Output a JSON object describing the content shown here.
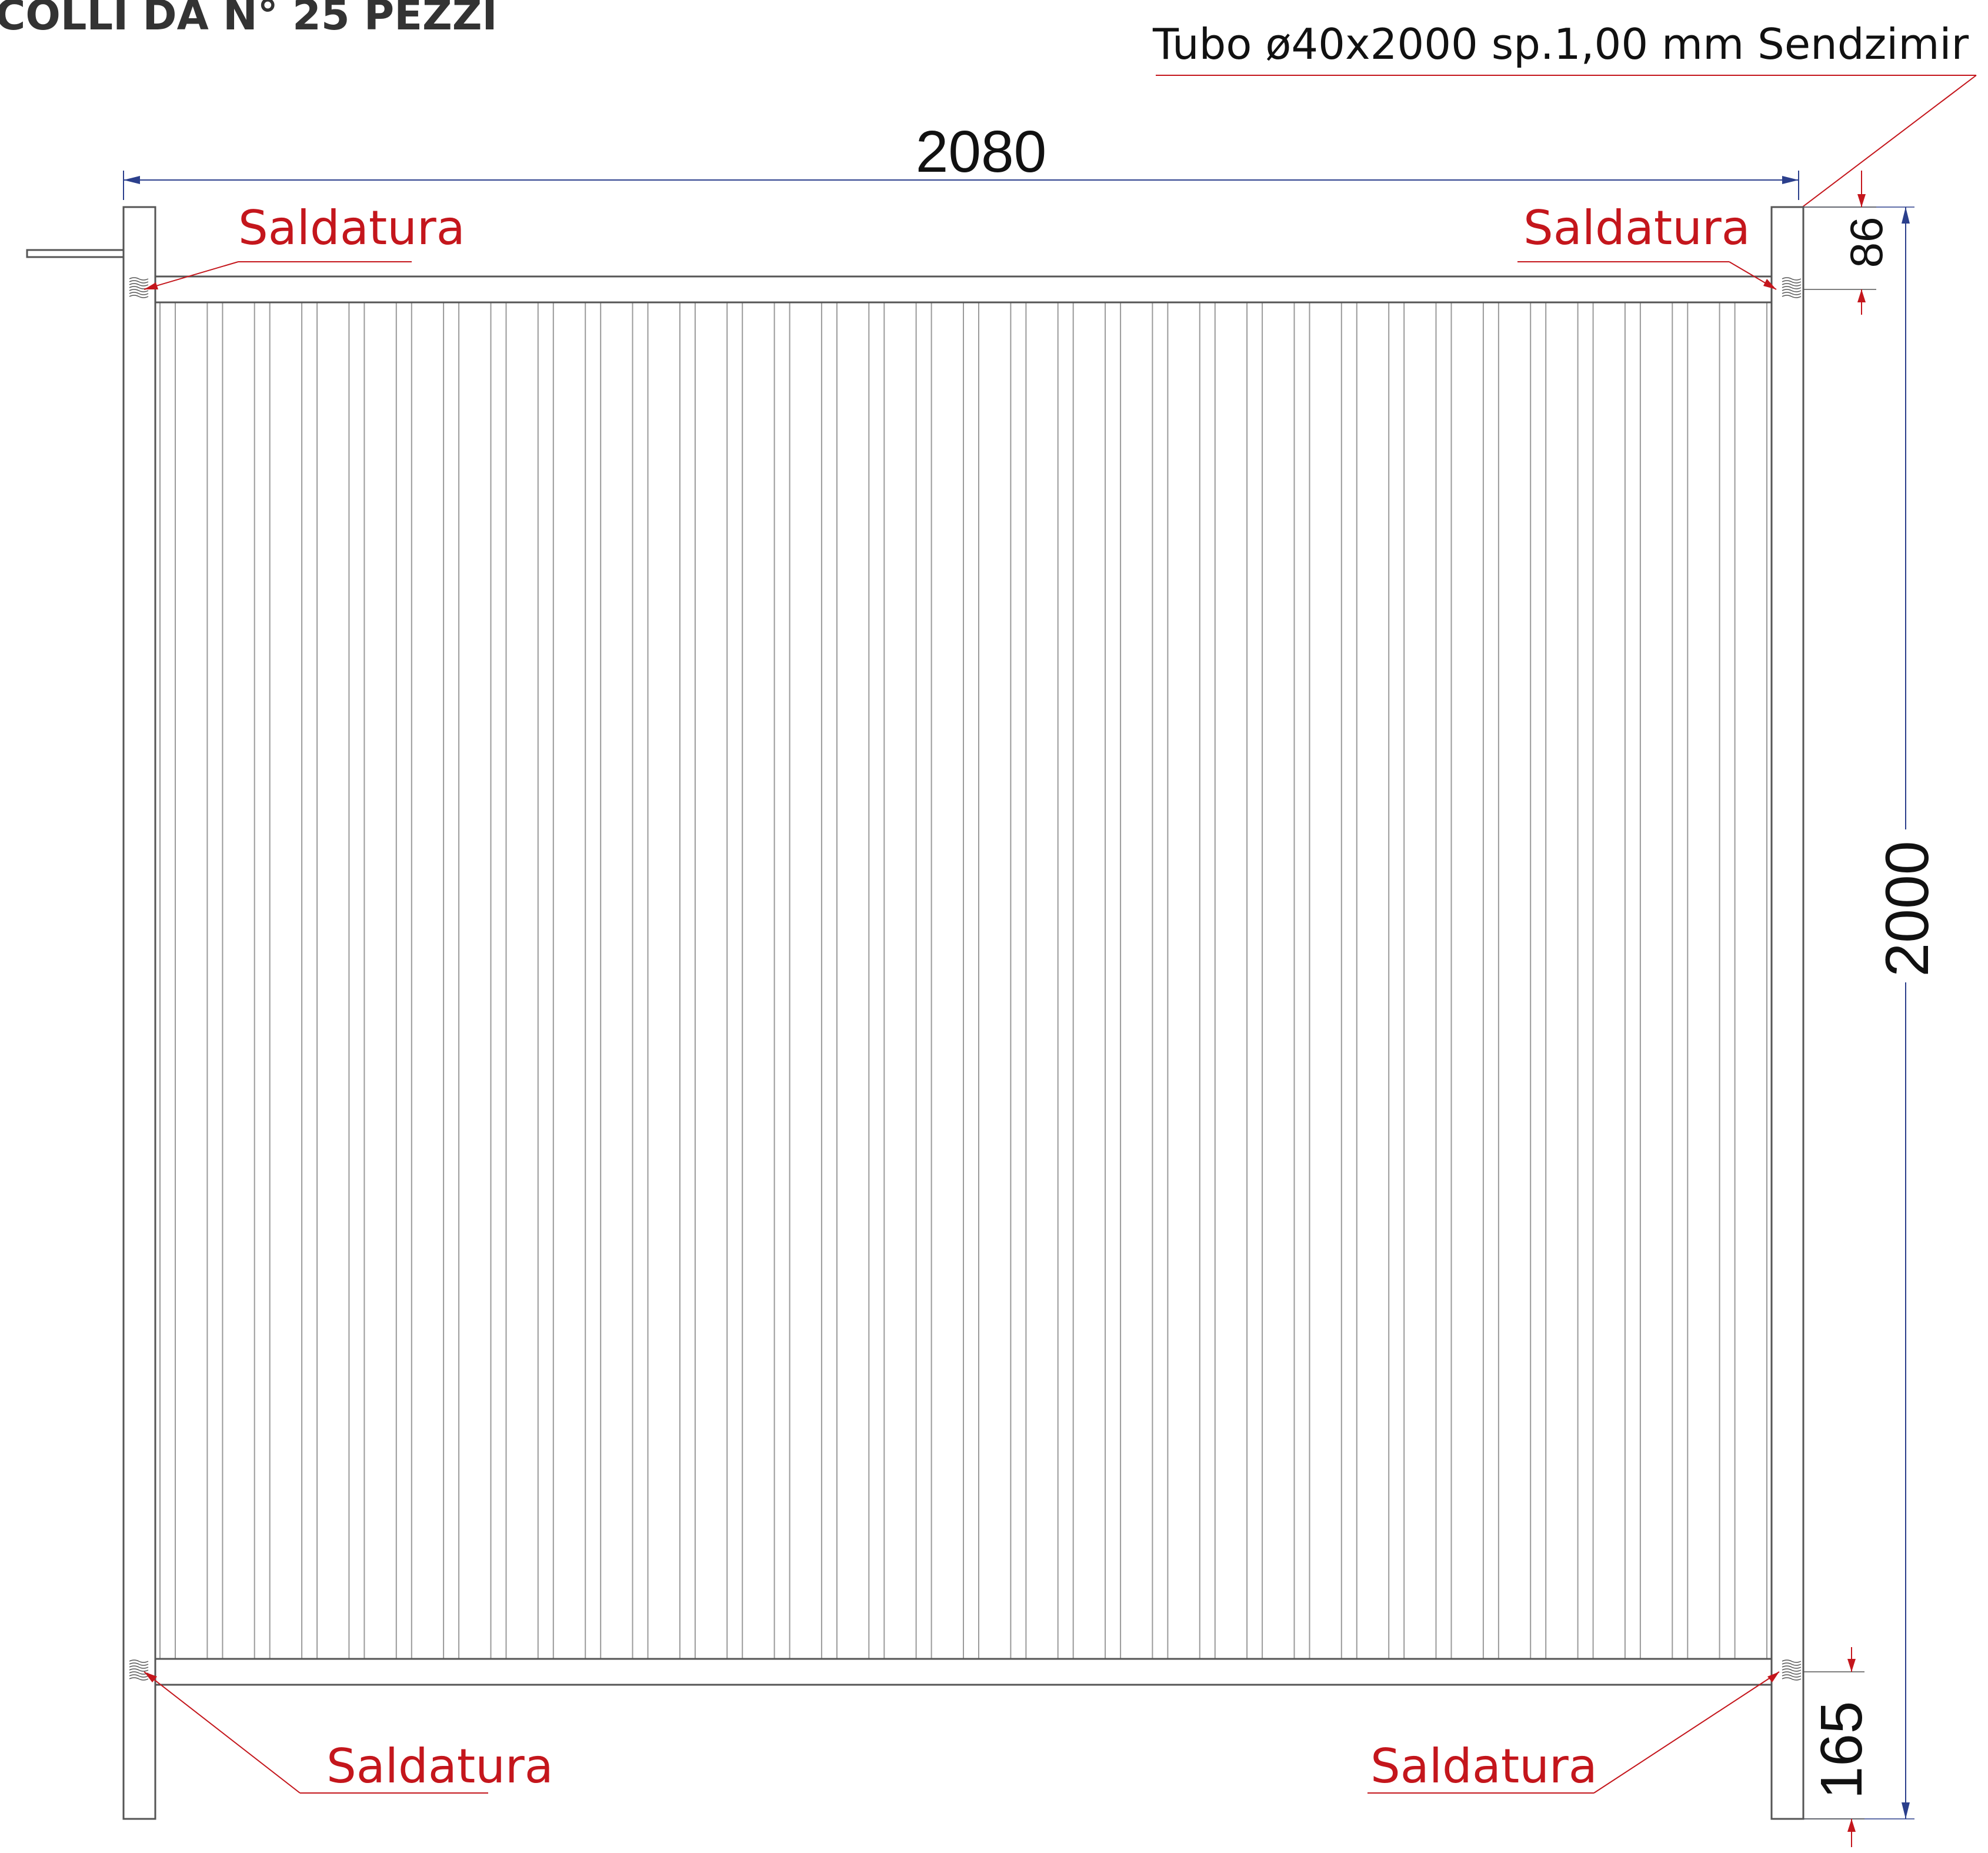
{
  "header": {
    "title": "COLLI DA N° 25 PEZZI"
  },
  "annotations": {
    "tube_spec": "Tubo ø40x2000 sp.1,00 mm Sendzimir",
    "weld_top_left": "Saldatura",
    "weld_top_right": "Saldatura",
    "weld_bottom_left": "Saldatura",
    "weld_bottom_right": "Saldatura"
  },
  "dimensions": {
    "width": "2080",
    "height": "2000",
    "top_offset": "86",
    "bottom_offset": "165"
  },
  "colors": {
    "outline": "#555555",
    "bars": "#999999",
    "annotation": "#c4161c",
    "dimension_line": "#2b3f8c"
  }
}
